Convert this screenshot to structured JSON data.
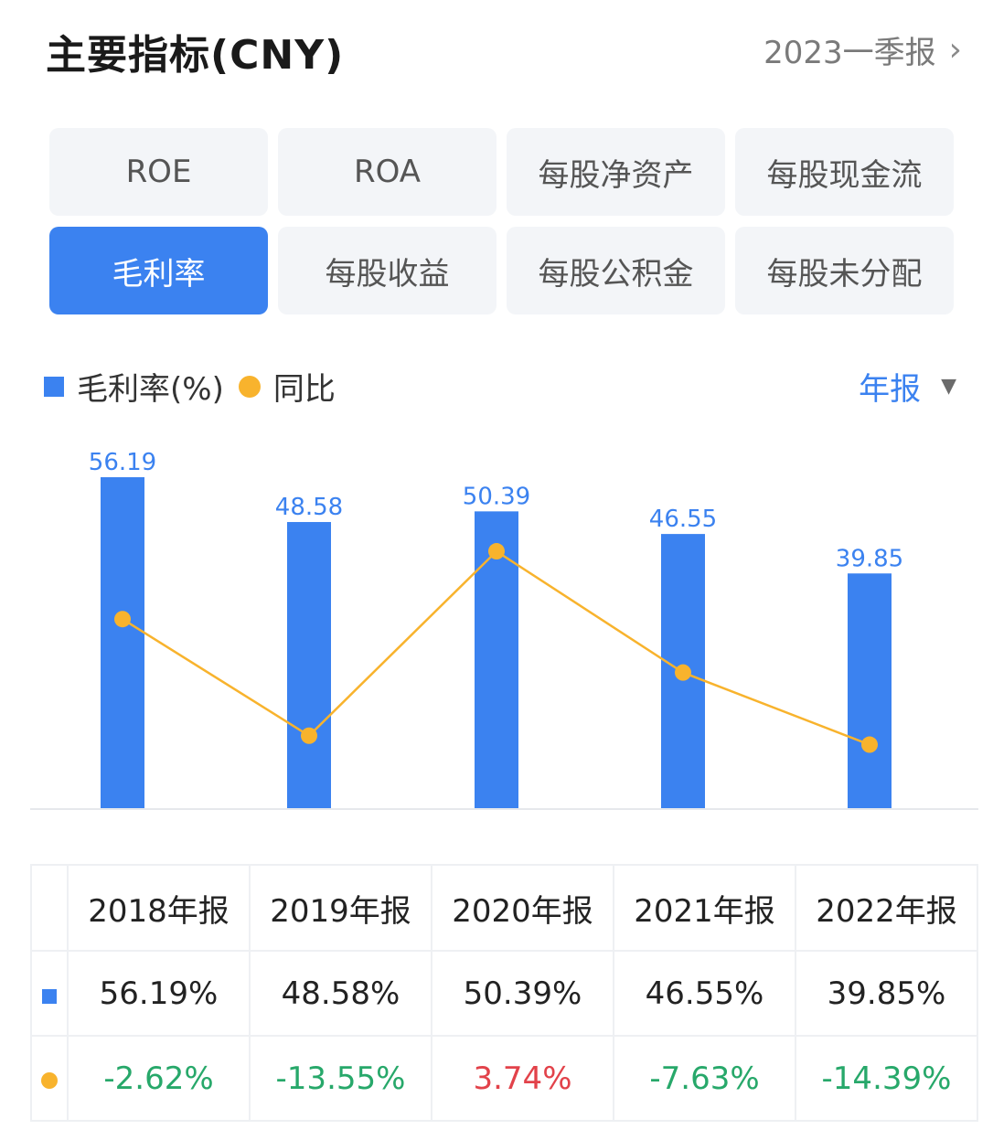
{
  "header": {
    "title": "主要指标(CNY)",
    "period": "2023一季报",
    "period_chevron": "›"
  },
  "tabs": [
    {
      "label": "ROE",
      "active": false
    },
    {
      "label": "ROA",
      "active": false
    },
    {
      "label": "每股净资产",
      "active": false
    },
    {
      "label": "每股现金流",
      "active": false
    },
    {
      "label": "毛利率",
      "active": true
    },
    {
      "label": "每股收益",
      "active": false
    },
    {
      "label": "每股公积金",
      "active": false
    },
    {
      "label": "每股未分配",
      "active": false
    }
  ],
  "legend": {
    "bar_label": "毛利率(%)",
    "line_label": "同比"
  },
  "report_select": {
    "label": "年报",
    "arrow": "▼"
  },
  "colors": {
    "bar": "#3b82f0",
    "line": "#f8b32d",
    "positive": "#e2424a",
    "negative": "#27a86a"
  },
  "chart_data": {
    "type": "bar",
    "categories": [
      "2018年报",
      "2019年报",
      "2020年报",
      "2021年报",
      "2022年报"
    ],
    "series": [
      {
        "name": "毛利率(%)",
        "type": "bar",
        "values": [
          56.19,
          48.58,
          50.39,
          46.55,
          39.85
        ]
      },
      {
        "name": "同比",
        "type": "line",
        "values": [
          -2.62,
          -13.55,
          3.74,
          -7.63,
          -14.39
        ]
      }
    ],
    "bar_ylim": [
      0,
      56.19
    ],
    "line_ylim": [
      -20,
      10
    ]
  },
  "table": {
    "headers": [
      "2018年报",
      "2019年报",
      "2020年报",
      "2021年报",
      "2022年报"
    ],
    "bar_row": [
      "56.19%",
      "48.58%",
      "50.39%",
      "46.55%",
      "39.85%"
    ],
    "line_row": [
      "-2.62%",
      "-13.55%",
      "3.74%",
      "-7.63%",
      "-14.39%"
    ]
  }
}
